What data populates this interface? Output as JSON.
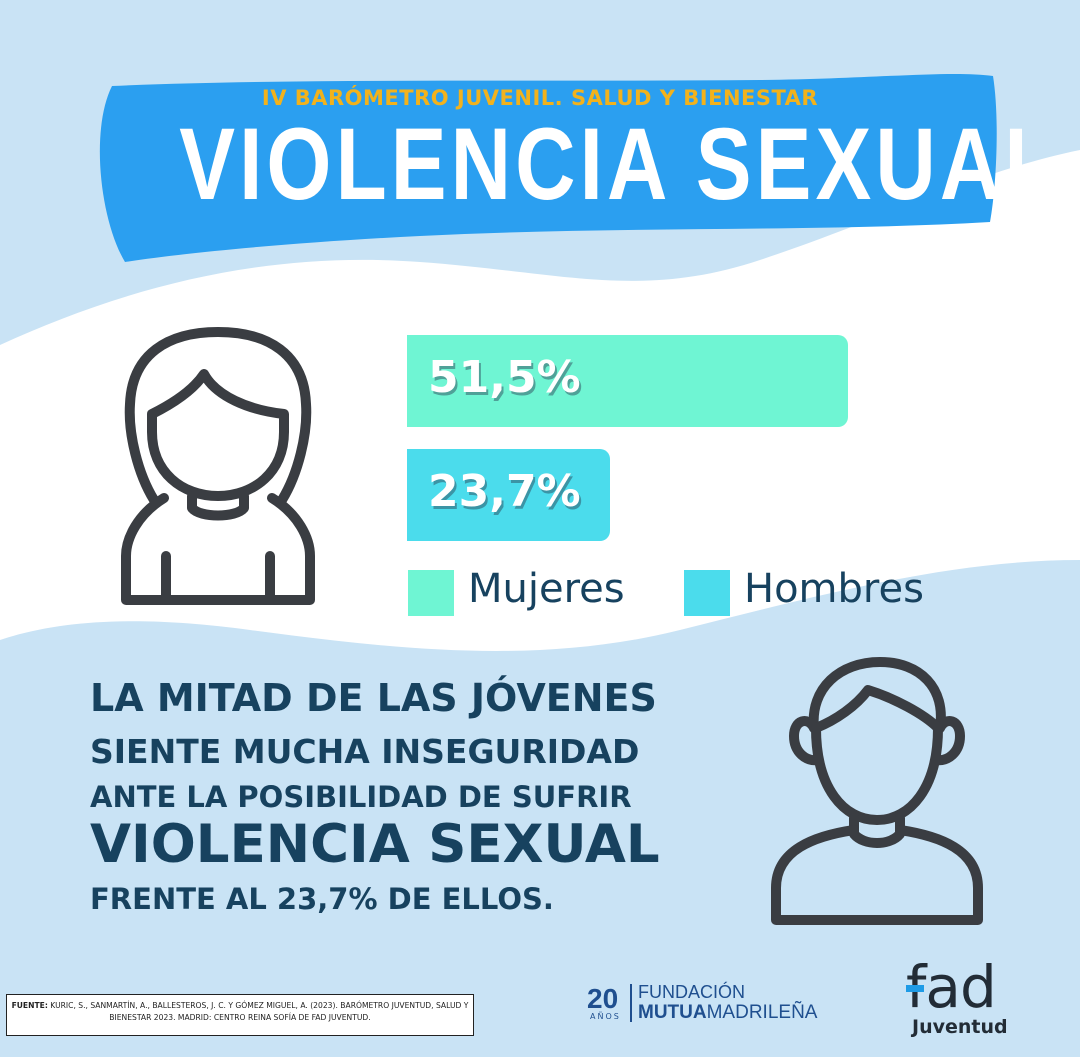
{
  "header": {
    "eyebrow": "IV BARÓMETRO JUVENIL. SALUD Y BIENESTAR",
    "title": "VIOLENCIA SEXUAL"
  },
  "colors": {
    "mujeres": "#6ff5d3",
    "hombres": "#4bdcec",
    "banner": "#2b9ff0",
    "dark_text": "#17425f",
    "eyebrow": "#f2b21c"
  },
  "chart_data": {
    "type": "bar",
    "orientation": "horizontal",
    "categories": [
      "Mujeres",
      "Hombres"
    ],
    "values": [
      51.5,
      23.7
    ],
    "value_labels": [
      "51,5%",
      "23,7%"
    ],
    "unit": "%",
    "legend": [
      {
        "name": "Mujeres",
        "color": "#6ff5d3"
      },
      {
        "name": "Hombres",
        "color": "#4bdcec"
      }
    ],
    "legend_position": "bottom",
    "grid": false
  },
  "message": {
    "line1": "LA MITAD DE LAS JÓVENES",
    "line2": "SIENTE MUCHA INSEGURIDAD",
    "line3": "ANTE LA POSIBILIDAD DE SUFRIR",
    "line4": "VIOLENCIA SEXUAL",
    "line5": "FRENTE AL 23,7% DE ELLOS."
  },
  "icons": {
    "woman": "woman-user-icon",
    "man": "man-user-icon"
  },
  "footer": {
    "source_label": "FUENTE:",
    "source_text": "KURIC, S., SANMARTÍN, A., BALLESTEROS, J. C. Y GÓMEZ MIGUEL, A. (2023). BARÓMETRO JUVENTUD, SALUD Y BIENESTAR 2023. MADRID: CENTRO REINA SOFÍA DE FAD JUVENTUD.",
    "logo_number": "20",
    "logo_years": "AÑOS",
    "logo_fundacion": "FUNDACIÓN",
    "logo_mutua": "MUTUA",
    "logo_madrilena": "MADRILEÑA",
    "fad": "fad",
    "fad_sub": "Juventud"
  }
}
